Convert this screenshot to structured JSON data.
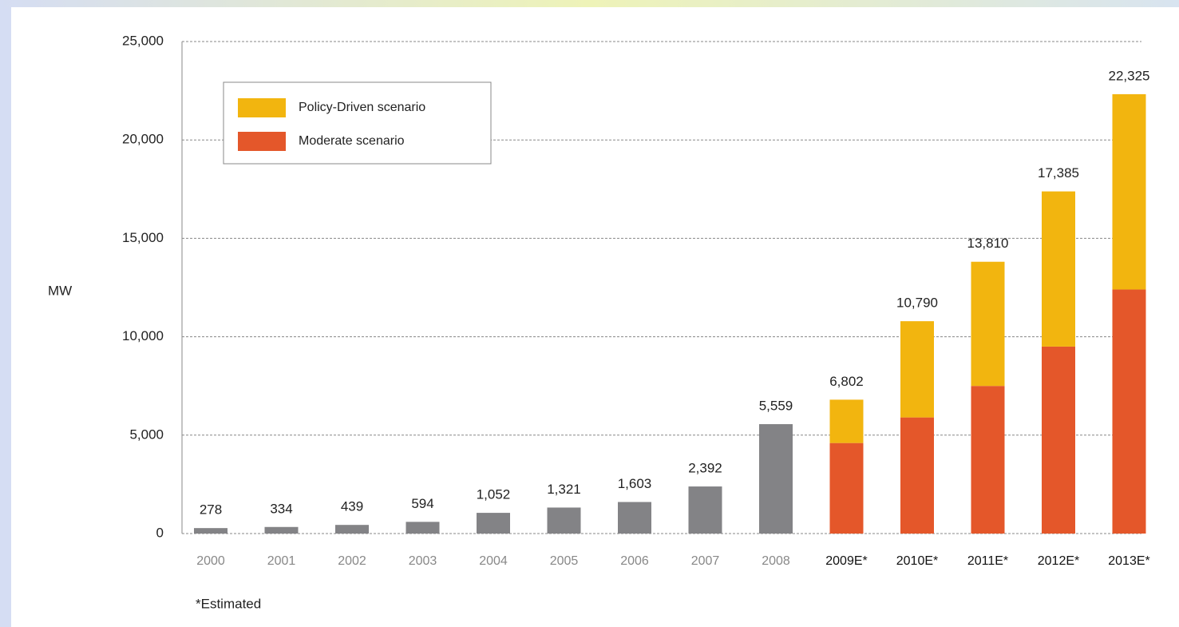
{
  "chart_data": {
    "type": "bar",
    "stacked": true,
    "y_label": "MW",
    "footnote": "*Estimated",
    "categories": [
      "2000",
      "2001",
      "2002",
      "2003",
      "2004",
      "2005",
      "2006",
      "2007",
      "2008",
      "2009E*",
      "2010E*",
      "2011E*",
      "2012E*",
      "2013E*"
    ],
    "series": [
      {
        "color": "#838386",
        "values": [
          278,
          334,
          439,
          594,
          1052,
          1321,
          1603,
          2392,
          5559,
          null,
          null,
          null,
          null,
          null
        ],
        "value_labels": [
          "278",
          "334",
          "439",
          "594",
          "1,052",
          "1,321",
          "1,603",
          "2,392",
          "5,559",
          null,
          null,
          null,
          null,
          null
        ]
      },
      {
        "name": "Moderate scenario",
        "color": "#e4572a",
        "values": [
          null,
          null,
          null,
          null,
          null,
          null,
          null,
          null,
          null,
          4600,
          5900,
          7500,
          9500,
          12400
        ]
      },
      {
        "name": "Policy-Driven scenario",
        "color": "#f2b50f",
        "values": [
          null,
          null,
          null,
          null,
          null,
          null,
          null,
          null,
          null,
          2202,
          4890,
          6310,
          7885,
          9925
        ]
      }
    ],
    "totals": [
      null,
      null,
      null,
      null,
      null,
      null,
      null,
      null,
      null,
      6802,
      10790,
      13810,
      17385,
      22325
    ],
    "total_labels": [
      null,
      null,
      null,
      null,
      null,
      null,
      null,
      null,
      null,
      "6,802",
      "10,790",
      "13,810",
      "17,385",
      "22,325"
    ],
    "ylim": [
      0,
      25000
    ],
    "yticks": [
      0,
      {
        "value": 5000,
        "label": "5,000"
      },
      {
        "value": 10000,
        "label": "10,000"
      },
      {
        "value": 15000,
        "label": "15,000"
      },
      {
        "value": 20000,
        "label": "20,000"
      },
      {
        "value": 25000,
        "label": "25,000"
      }
    ],
    "grid": true,
    "legend": "top-left"
  }
}
